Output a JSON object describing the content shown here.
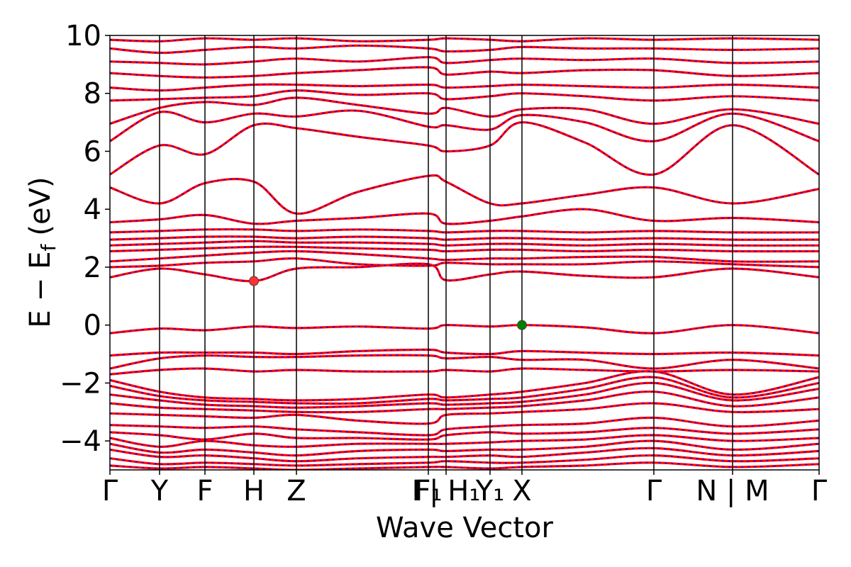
{
  "chart_data": {
    "type": "line",
    "title": "",
    "xlabel": "Wave Vector",
    "ylabel": "E − E_f (eV)",
    "ylabel_parts": {
      "a": "E",
      "minus": "−",
      "b": "E",
      "sub": "f",
      "unit": "(eV)"
    },
    "ylim": [
      -5,
      10
    ],
    "y_ticks": [
      -4,
      -2,
      0,
      2,
      4,
      6,
      8,
      10
    ],
    "y_tick_labels": [
      "−4",
      "−2",
      "0",
      "2",
      "4",
      "6",
      "8",
      "10"
    ],
    "xlim": [
      0,
      10
    ],
    "x_ticks": [
      {
        "label": "Γ",
        "x": 0.0
      },
      {
        "label": "Y",
        "x": 0.7
      },
      {
        "label": "F",
        "x": 1.34
      },
      {
        "label": "H",
        "x": 2.03
      },
      {
        "label": "Z",
        "x": 2.63
      },
      {
        "label": "F₁",
        "x": 4.49
      },
      {
        "label": "I | H₁",
        "x": 4.74
      },
      {
        "label": "Y₁",
        "x": 5.36
      },
      {
        "label": "X",
        "x": 5.81
      },
      {
        "label": "Γ",
        "x": 7.67
      },
      {
        "label": "N | M",
        "x": 8.78
      },
      {
        "label": "Γ",
        "x": 10.0
      }
    ],
    "special_points": [
      {
        "name": "CBM",
        "x": 2.03,
        "y": 1.52,
        "color": "#ff3030"
      },
      {
        "name": "VBM",
        "x": 5.81,
        "y": 0.0,
        "color": "#008000"
      }
    ],
    "styles": {
      "band_primary_color": "#ff0000",
      "band_overlay_color": "#0000ff",
      "overlay_dash": "dashed"
    },
    "series": [
      {
        "role": "valence",
        "x": [
          0,
          0.7,
          1.34,
          2.03,
          2.63,
          3.5,
          4.49,
          4.74,
          5.36,
          5.81,
          6.7,
          7.67,
          8.78,
          10
        ],
        "values": [
          -0.28,
          -0.12,
          -0.18,
          -0.05,
          -0.1,
          -0.05,
          -0.12,
          0.0,
          -0.05,
          0.0,
          -0.08,
          -0.28,
          0.0,
          -0.28
        ]
      },
      {
        "role": "valence",
        "x": [
          0,
          0.7,
          1.34,
          2.03,
          2.63,
          3.5,
          4.49,
          4.74,
          5.36,
          5.81,
          6.7,
          7.67,
          8.78,
          10
        ],
        "values": [
          -1.05,
          -0.95,
          -0.95,
          -0.95,
          -1.0,
          -0.9,
          -0.85,
          -0.95,
          -1.0,
          -0.9,
          -0.95,
          -1.0,
          -0.95,
          -1.05
        ]
      },
      {
        "role": "valence",
        "x": [
          0,
          0.7,
          1.34,
          2.03,
          2.63,
          3.5,
          4.49,
          4.74,
          5.36,
          5.81,
          6.7,
          7.67,
          8.78,
          10
        ],
        "values": [
          -1.5,
          -1.15,
          -1.05,
          -1.1,
          -1.1,
          -1.05,
          -1.05,
          -1.15,
          -1.1,
          -1.2,
          -1.2,
          -1.5,
          -1.2,
          -1.5
        ]
      },
      {
        "role": "valence",
        "x": [
          0,
          0.7,
          1.34,
          2.03,
          2.63,
          3.5,
          4.49,
          4.74,
          5.36,
          5.81,
          6.7,
          7.67,
          8.78,
          10
        ],
        "values": [
          -1.7,
          -1.55,
          -1.5,
          -1.6,
          -1.55,
          -1.6,
          -1.6,
          -1.55,
          -1.6,
          -1.5,
          -1.55,
          -1.6,
          -1.55,
          -1.6
        ]
      },
      {
        "role": "valence",
        "x": [
          0,
          0.7,
          1.34,
          2.03,
          2.63,
          3.5,
          4.49,
          4.74,
          5.36,
          5.81,
          6.7,
          7.67,
          8.78,
          10
        ],
        "values": [
          -1.9,
          -2.3,
          -2.5,
          -2.55,
          -2.6,
          -2.55,
          -2.4,
          -2.5,
          -2.4,
          -2.3,
          -2.0,
          -1.6,
          -2.4,
          -1.8
        ]
      },
      {
        "role": "valence",
        "x": [
          0,
          0.7,
          1.34,
          2.03,
          2.63,
          3.5,
          4.49,
          4.74,
          5.36,
          5.81,
          6.7,
          7.67,
          8.78,
          10
        ],
        "values": [
          -2.1,
          -2.45,
          -2.6,
          -2.65,
          -2.7,
          -2.7,
          -2.55,
          -2.6,
          -2.55,
          -2.5,
          -2.2,
          -1.8,
          -2.5,
          -2.0
        ]
      },
      {
        "role": "valence",
        "x": [
          0,
          0.7,
          1.34,
          2.03,
          2.63,
          3.5,
          4.49,
          4.74,
          5.36,
          5.81,
          6.7,
          7.67,
          8.78,
          10
        ],
        "values": [
          -2.4,
          -2.6,
          -2.75,
          -2.8,
          -2.85,
          -2.8,
          -2.7,
          -2.75,
          -2.7,
          -2.65,
          -2.4,
          -2.0,
          -2.6,
          -2.2
        ]
      },
      {
        "role": "valence",
        "x": [
          0,
          0.7,
          1.34,
          2.03,
          2.63,
          3.5,
          4.49,
          4.74,
          5.36,
          5.81,
          6.7,
          7.67,
          8.78,
          10
        ],
        "values": [
          -2.7,
          -2.85,
          -2.9,
          -2.95,
          -3.0,
          -3.0,
          -2.9,
          -2.9,
          -2.85,
          -2.8,
          -2.6,
          -2.3,
          -2.8,
          -2.5
        ]
      },
      {
        "role": "valence",
        "x": [
          0,
          0.7,
          1.34,
          2.03,
          2.63,
          3.5,
          4.49,
          4.74,
          5.36,
          5.81,
          6.7,
          7.67,
          8.78,
          10
        ],
        "values": [
          -3.05,
          -3.1,
          -3.15,
          -3.2,
          -3.1,
          -3.3,
          -3.4,
          -3.1,
          -3.05,
          -3.0,
          -2.9,
          -2.7,
          -3.0,
          -2.9
        ]
      },
      {
        "role": "valence",
        "x": [
          0,
          0.7,
          1.34,
          2.03,
          2.63,
          3.5,
          4.49,
          4.74,
          5.36,
          5.81,
          6.7,
          7.67,
          8.78,
          10
        ],
        "values": [
          -3.45,
          -3.5,
          -3.55,
          -3.5,
          -3.6,
          -3.7,
          -3.8,
          -3.6,
          -3.5,
          -3.45,
          -3.4,
          -3.2,
          -3.5,
          -3.3
        ]
      },
      {
        "role": "valence",
        "x": [
          0,
          0.7,
          1.34,
          2.03,
          2.63,
          3.5,
          4.49,
          4.74,
          5.36,
          5.81,
          6.7,
          7.67,
          8.78,
          10
        ],
        "values": [
          -3.7,
          -3.8,
          -3.95,
          -3.75,
          -3.9,
          -3.9,
          -3.95,
          -3.8,
          -3.7,
          -3.75,
          -3.7,
          -3.55,
          -3.75,
          -3.6
        ]
      },
      {
        "role": "valence",
        "x": [
          0,
          0.7,
          1.34,
          2.03,
          2.63,
          3.5,
          4.49,
          4.74,
          5.36,
          5.81,
          6.7,
          7.67,
          8.78,
          10
        ],
        "values": [
          -3.9,
          -4.2,
          -4.0,
          -4.15,
          -4.2,
          -4.1,
          -4.1,
          -4.1,
          -4.05,
          -4.0,
          -3.95,
          -3.8,
          -4.0,
          -3.9
        ]
      },
      {
        "role": "valence",
        "x": [
          0,
          0.7,
          1.34,
          2.03,
          2.63,
          3.5,
          4.49,
          4.74,
          5.36,
          5.81,
          6.7,
          7.67,
          8.78,
          10
        ],
        "values": [
          -4.1,
          -4.4,
          -4.3,
          -4.4,
          -4.5,
          -4.35,
          -4.3,
          -4.35,
          -4.3,
          -4.3,
          -4.2,
          -4.0,
          -4.3,
          -4.1
        ]
      },
      {
        "role": "valence",
        "x": [
          0,
          0.7,
          1.34,
          2.03,
          2.63,
          3.5,
          4.49,
          4.74,
          5.36,
          5.81,
          6.7,
          7.67,
          8.78,
          10
        ],
        "values": [
          -4.3,
          -4.55,
          -4.5,
          -4.6,
          -4.7,
          -4.6,
          -4.55,
          -4.55,
          -4.5,
          -4.55,
          -4.4,
          -4.25,
          -4.5,
          -4.35
        ]
      },
      {
        "role": "valence",
        "x": [
          0,
          0.7,
          1.34,
          2.03,
          2.63,
          3.5,
          4.49,
          4.74,
          5.36,
          5.81,
          6.7,
          7.67,
          8.78,
          10
        ],
        "values": [
          -4.6,
          -4.8,
          -4.75,
          -4.8,
          -4.85,
          -4.8,
          -4.75,
          -4.7,
          -4.75,
          -4.75,
          -4.65,
          -4.5,
          -4.7,
          -4.6
        ]
      },
      {
        "role": "valence",
        "x": [
          0,
          0.7,
          1.34,
          2.03,
          2.63,
          3.5,
          4.49,
          4.74,
          5.36,
          5.81,
          6.7,
          7.67,
          8.78,
          10
        ],
        "values": [
          -4.85,
          -4.95,
          -4.9,
          -4.95,
          -5.0,
          -4.95,
          -4.9,
          -4.9,
          -4.95,
          -4.9,
          -4.85,
          -4.75,
          -4.9,
          -4.8
        ]
      },
      {
        "role": "conduction",
        "x": [
          0,
          0.7,
          1.34,
          2.03,
          2.63,
          3.5,
          4.49,
          4.74,
          5.36,
          5.81,
          6.7,
          7.67,
          8.78,
          10
        ],
        "values": [
          1.65,
          1.95,
          1.75,
          1.52,
          1.95,
          2.0,
          2.1,
          1.55,
          1.75,
          1.85,
          1.7,
          1.65,
          1.95,
          1.65
        ]
      },
      {
        "role": "conduction",
        "x": [
          0,
          0.7,
          1.34,
          2.03,
          2.63,
          3.5,
          4.49,
          4.74,
          5.36,
          5.81,
          6.7,
          7.67,
          8.78,
          10
        ],
        "values": [
          2.0,
          2.05,
          2.15,
          2.2,
          2.3,
          2.1,
          2.05,
          2.15,
          2.1,
          2.1,
          2.1,
          2.2,
          2.1,
          2.0
        ]
      },
      {
        "role": "conduction",
        "x": [
          0,
          0.7,
          1.34,
          2.03,
          2.63,
          3.5,
          4.49,
          4.74,
          5.36,
          5.81,
          6.7,
          7.67,
          8.78,
          10
        ],
        "values": [
          2.2,
          2.3,
          2.4,
          2.5,
          2.55,
          2.45,
          2.3,
          2.25,
          2.3,
          2.3,
          2.35,
          2.35,
          2.2,
          2.2
        ]
      },
      {
        "role": "conduction",
        "x": [
          0,
          0.7,
          1.34,
          2.03,
          2.63,
          3.5,
          4.49,
          4.74,
          5.36,
          5.81,
          6.7,
          7.67,
          8.78,
          10
        ],
        "values": [
          2.55,
          2.6,
          2.65,
          2.7,
          2.7,
          2.65,
          2.6,
          2.55,
          2.6,
          2.6,
          2.55,
          2.6,
          2.55,
          2.55
        ]
      },
      {
        "role": "conduction",
        "x": [
          0,
          0.7,
          1.34,
          2.03,
          2.63,
          3.5,
          4.49,
          4.74,
          5.36,
          5.81,
          6.7,
          7.67,
          8.78,
          10
        ],
        "values": [
          2.75,
          2.8,
          2.85,
          2.9,
          2.85,
          2.85,
          2.8,
          2.75,
          2.8,
          2.8,
          2.75,
          2.8,
          2.75,
          2.75
        ]
      },
      {
        "role": "conduction",
        "x": [
          0,
          0.7,
          1.34,
          2.03,
          2.63,
          3.5,
          4.49,
          4.74,
          5.36,
          5.81,
          6.7,
          7.67,
          8.78,
          10
        ],
        "values": [
          2.95,
          3.0,
          3.05,
          3.05,
          3.0,
          3.05,
          3.0,
          2.95,
          3.0,
          3.0,
          2.95,
          3.0,
          2.95,
          2.95
        ]
      },
      {
        "role": "conduction",
        "x": [
          0,
          0.7,
          1.34,
          2.03,
          2.63,
          3.5,
          4.49,
          4.74,
          5.36,
          5.81,
          6.7,
          7.67,
          8.78,
          10
        ],
        "values": [
          3.2,
          3.25,
          3.3,
          3.3,
          3.25,
          3.3,
          3.25,
          3.2,
          3.25,
          3.25,
          3.2,
          3.25,
          3.2,
          3.2
        ]
      },
      {
        "role": "conduction",
        "x": [
          0,
          0.7,
          1.34,
          2.03,
          2.63,
          3.5,
          4.49,
          4.74,
          5.36,
          5.81,
          6.7,
          7.67,
          8.78,
          10
        ],
        "values": [
          3.55,
          3.65,
          3.8,
          3.5,
          3.6,
          3.7,
          3.85,
          3.5,
          3.6,
          3.75,
          4.0,
          3.6,
          3.7,
          3.55
        ]
      },
      {
        "role": "conduction",
        "x": [
          0,
          0.7,
          1.34,
          2.03,
          2.63,
          3.5,
          4.49,
          4.74,
          5.36,
          5.81,
          6.7,
          7.67,
          8.78,
          10
        ],
        "values": [
          4.75,
          4.2,
          4.9,
          4.95,
          3.85,
          4.6,
          5.15,
          4.95,
          4.2,
          4.2,
          4.5,
          4.75,
          4.2,
          4.7
        ]
      },
      {
        "role": "conduction",
        "x": [
          0,
          0.7,
          1.34,
          2.03,
          2.63,
          3.5,
          4.49,
          4.74,
          5.36,
          5.81,
          6.7,
          7.67,
          8.78,
          10
        ],
        "values": [
          5.2,
          6.2,
          5.9,
          6.9,
          6.8,
          6.5,
          6.2,
          6.0,
          6.2,
          7.0,
          6.3,
          5.2,
          6.9,
          5.2
        ]
      },
      {
        "role": "conduction",
        "x": [
          0,
          0.7,
          1.34,
          2.03,
          2.63,
          3.5,
          4.49,
          4.74,
          5.36,
          5.81,
          6.7,
          7.67,
          8.78,
          10
        ],
        "values": [
          6.35,
          7.35,
          7.0,
          7.3,
          7.2,
          7.4,
          6.85,
          6.9,
          6.75,
          7.25,
          7.0,
          6.35,
          7.3,
          6.35
        ]
      },
      {
        "role": "conduction",
        "x": [
          0,
          0.7,
          1.34,
          2.03,
          2.63,
          3.5,
          4.49,
          4.74,
          5.36,
          5.81,
          6.7,
          7.67,
          8.78,
          10
        ],
        "values": [
          6.95,
          7.5,
          7.7,
          7.6,
          7.85,
          7.6,
          7.3,
          7.5,
          7.2,
          7.45,
          7.45,
          6.95,
          7.45,
          6.95
        ]
      },
      {
        "role": "conduction",
        "x": [
          0,
          0.7,
          1.34,
          2.03,
          2.63,
          3.5,
          4.49,
          4.74,
          5.36,
          5.81,
          6.7,
          7.67,
          8.78,
          10
        ],
        "values": [
          7.75,
          7.8,
          7.85,
          7.9,
          8.1,
          7.95,
          8.0,
          7.8,
          7.9,
          8.0,
          7.9,
          7.75,
          7.9,
          7.75
        ]
      },
      {
        "role": "conduction",
        "x": [
          0,
          0.7,
          1.34,
          2.03,
          2.63,
          3.5,
          4.49,
          4.74,
          5.36,
          5.81,
          6.7,
          7.67,
          8.78,
          10
        ],
        "values": [
          8.2,
          8.1,
          8.2,
          8.3,
          8.3,
          8.25,
          8.3,
          8.2,
          8.25,
          8.3,
          8.25,
          8.2,
          8.3,
          8.2
        ]
      },
      {
        "role": "conduction",
        "x": [
          0,
          0.7,
          1.34,
          2.03,
          2.63,
          3.5,
          4.49,
          4.74,
          5.36,
          5.81,
          6.7,
          7.67,
          8.78,
          10
        ],
        "values": [
          8.7,
          8.6,
          8.55,
          8.6,
          8.7,
          8.8,
          8.9,
          8.65,
          8.75,
          8.7,
          8.8,
          8.8,
          8.6,
          8.7
        ]
      },
      {
        "role": "conduction",
        "x": [
          0,
          0.7,
          1.34,
          2.03,
          2.63,
          3.5,
          4.49,
          4.74,
          5.36,
          5.81,
          6.7,
          7.67,
          8.78,
          10
        ],
        "values": [
          9.1,
          9.05,
          9.0,
          9.1,
          9.2,
          9.1,
          9.25,
          9.05,
          9.15,
          9.2,
          9.15,
          9.2,
          9.05,
          9.1
        ]
      },
      {
        "role": "conduction",
        "x": [
          0,
          0.7,
          1.34,
          2.03,
          2.63,
          3.5,
          4.49,
          4.74,
          5.36,
          5.81,
          6.7,
          7.67,
          8.78,
          10
        ],
        "values": [
          9.55,
          9.4,
          9.5,
          9.6,
          9.55,
          9.65,
          9.55,
          9.45,
          9.5,
          9.6,
          9.55,
          9.55,
          9.5,
          9.55
        ]
      },
      {
        "role": "conduction",
        "x": [
          0,
          0.7,
          1.34,
          2.03,
          2.63,
          3.5,
          4.49,
          4.74,
          5.36,
          5.81,
          6.7,
          7.67,
          8.78,
          10
        ],
        "values": [
          9.85,
          9.8,
          9.9,
          9.85,
          9.9,
          9.8,
          9.85,
          9.9,
          9.85,
          9.8,
          9.9,
          9.85,
          9.9,
          9.85
        ]
      }
    ]
  }
}
